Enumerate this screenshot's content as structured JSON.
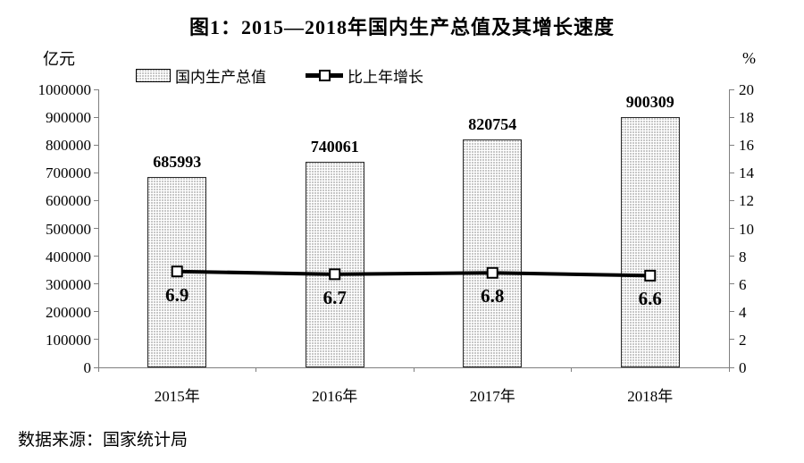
{
  "chart_data": {
    "type": "bar",
    "title": "图1：2015—2018年国内生产总值及其增长速度",
    "categories": [
      "2015年",
      "2016年",
      "2017年",
      "2018年"
    ],
    "series": [
      {
        "name": "国内生产总值",
        "type": "bar",
        "axis": "left",
        "values": [
          685993,
          740061,
          820754,
          900309
        ]
      },
      {
        "name": "比上年增长",
        "type": "line",
        "axis": "right",
        "values": [
          6.9,
          6.7,
          6.8,
          6.6
        ]
      }
    ],
    "left_axis": {
      "unit": "亿元",
      "min": 0,
      "max": 1000000,
      "step": 100000
    },
    "right_axis": {
      "unit": "%",
      "min": 0,
      "max": 20,
      "step": 2
    },
    "legend_position": "top",
    "grid": false,
    "source": "数据来源：国家统计局",
    "colors": {
      "bar_fill": "#ffffff",
      "bar_stipple": "#bdbdbd",
      "bar_border": "#2b2b2b",
      "line": "#000000",
      "marker_fill": "#ffffff",
      "marker_border": "#000000",
      "axis": "#7f7f7f",
      "text": "#000000"
    }
  }
}
